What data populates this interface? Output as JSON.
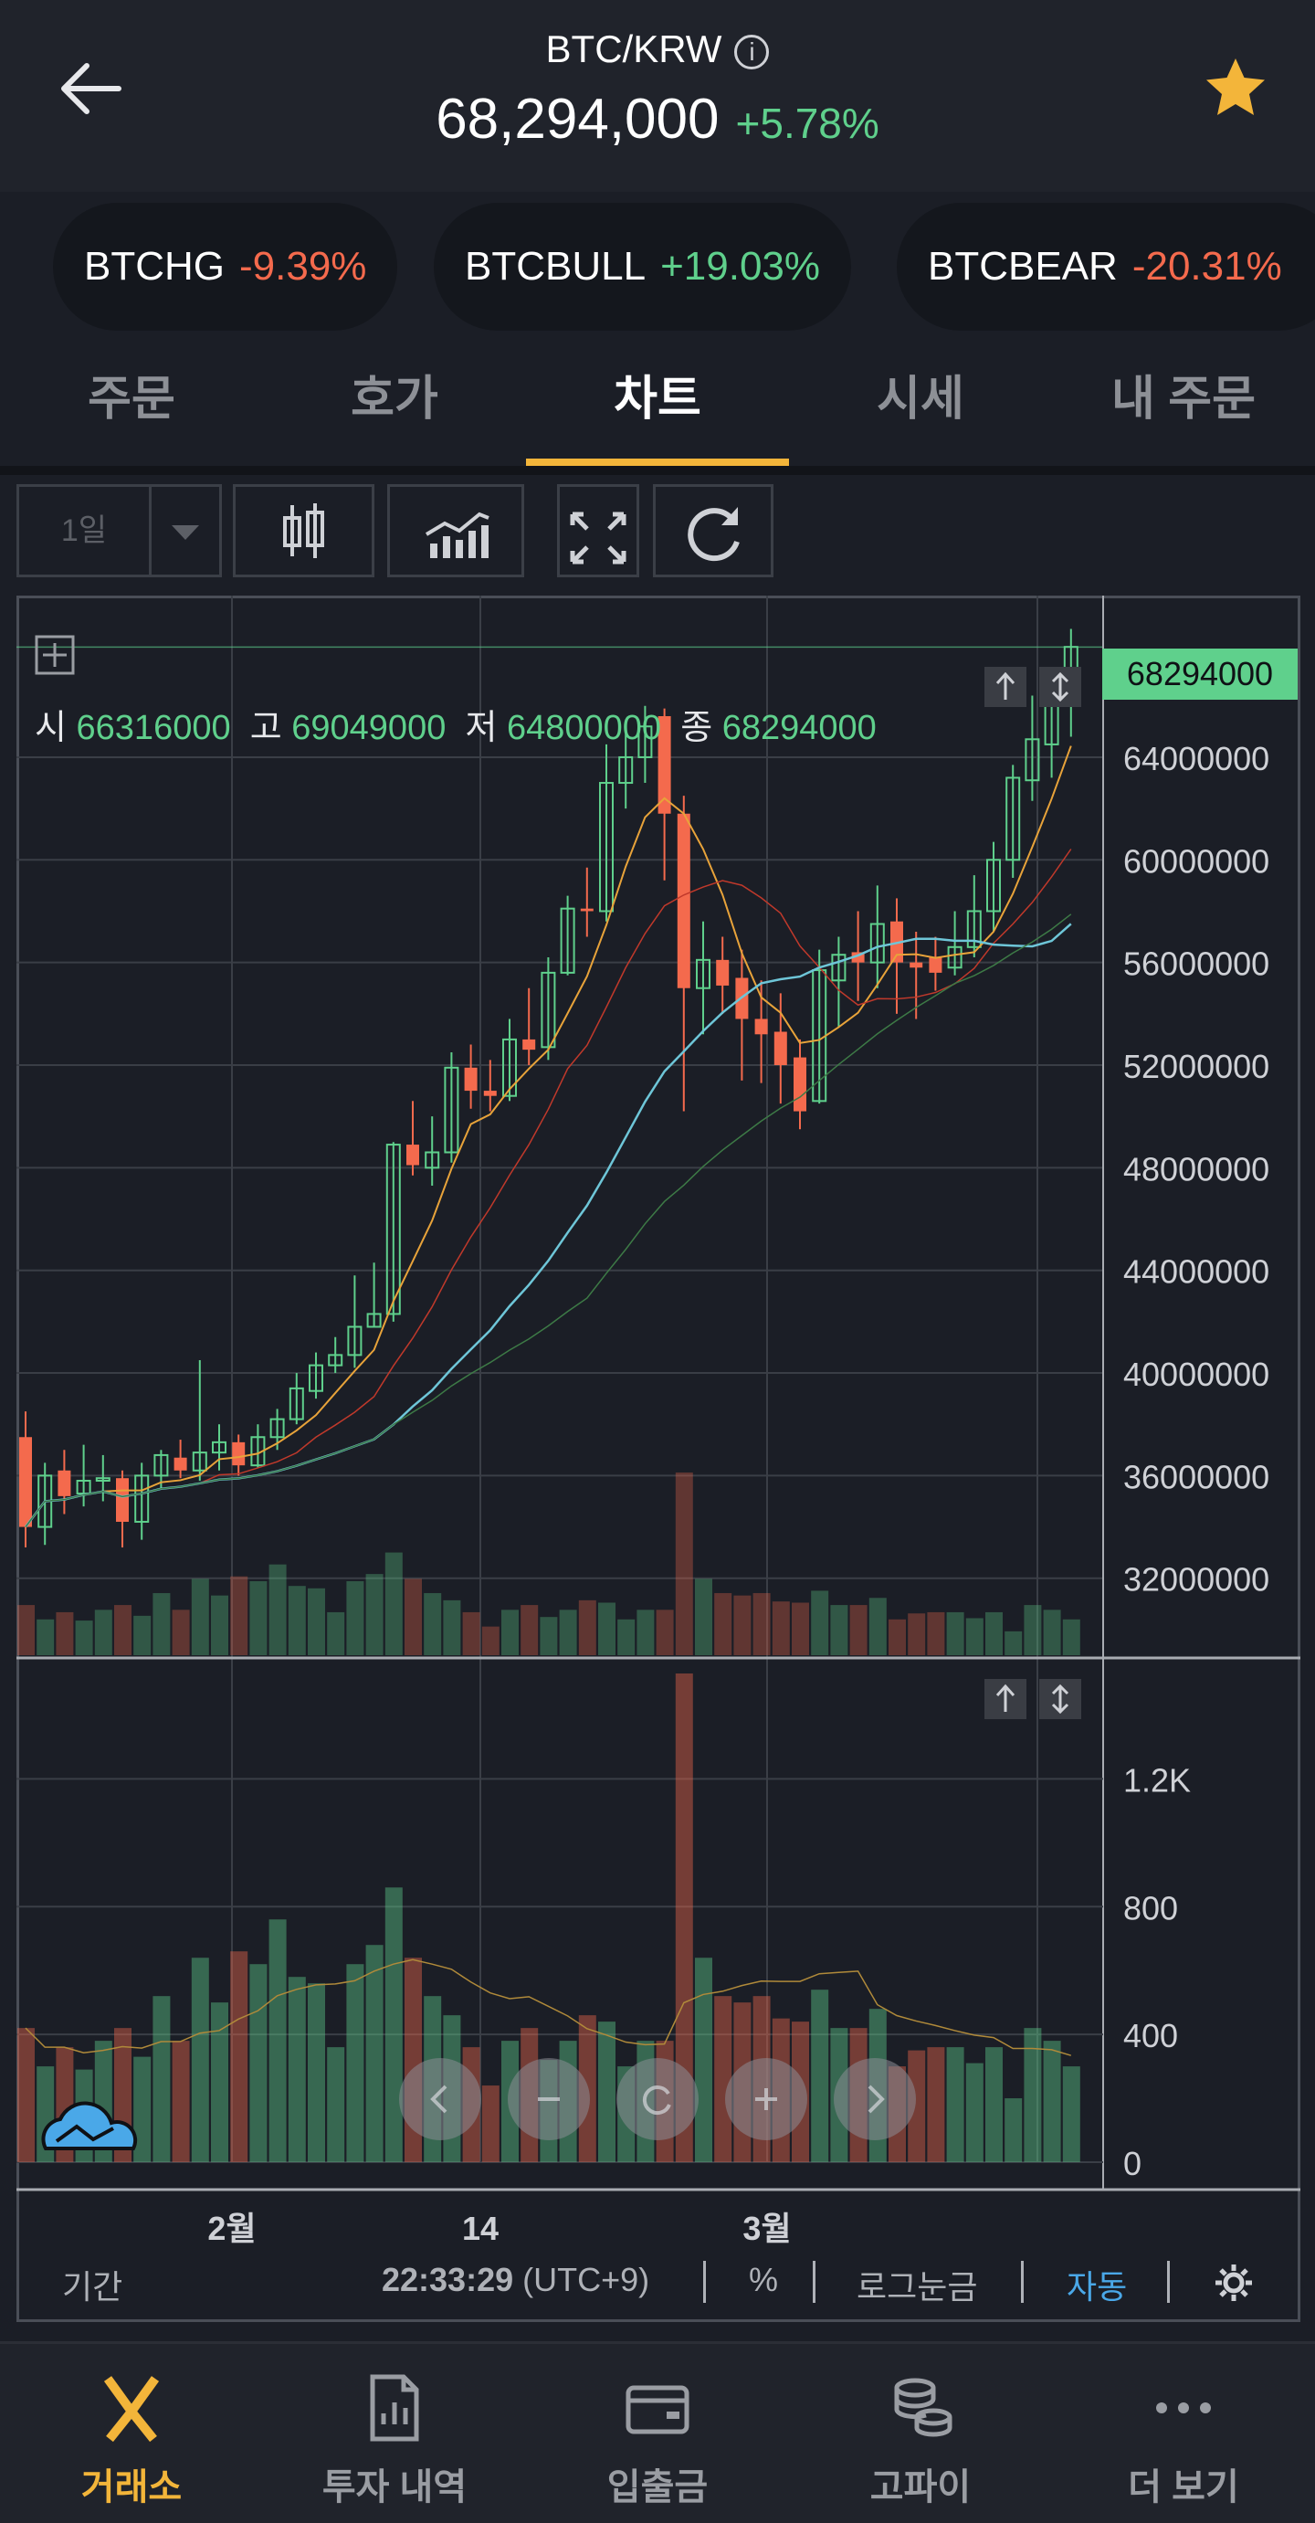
{
  "header": {
    "pair": "BTC/KRW",
    "info_glyph": "i",
    "price": "68,294,000",
    "change": "+5.78%"
  },
  "related": [
    {
      "name": "BTCHG",
      "change": "-9.39%"
    },
    {
      "name": "BTCBULL",
      "change": "+19.03%"
    },
    {
      "name": "BTCBEAR",
      "change": "-20.31%"
    }
  ],
  "tabs": [
    "주문",
    "호가",
    "차트",
    "시세",
    "내 주문"
  ],
  "active_tab": "차트",
  "toolbar": {
    "interval": "1일"
  },
  "ohlc": {
    "open_label": "시",
    "open": "66316000",
    "high_label": "고",
    "high": "69049000",
    "low_label": "저",
    "low": "64800000",
    "close_label": "종",
    "close": "68294000"
  },
  "last_price_tag": "68294000",
  "price_axis": [
    "64000000",
    "60000000",
    "56000000",
    "52000000",
    "48000000",
    "44000000",
    "40000000",
    "36000000",
    "32000000"
  ],
  "volume_axis": [
    "1.2K",
    "800",
    "400",
    "0"
  ],
  "time_axis": [
    "2월",
    "14",
    "3월"
  ],
  "footer": {
    "period": "기간",
    "time": "22:33:29",
    "tz": "(UTC+9)",
    "percent": "%",
    "log": "로그눈금",
    "auto": "자동"
  },
  "colors": {
    "up": "#5fd08c",
    "down": "#f46a4d",
    "accent": "#f3b53a",
    "auto": "#4aa8e8"
  },
  "nav": [
    {
      "label": "거래소",
      "icon": "exchange-x-icon"
    },
    {
      "label": "투자 내역",
      "icon": "report-icon"
    },
    {
      "label": "입출금",
      "icon": "wallet-icon"
    },
    {
      "label": "고파이",
      "icon": "coins-icon"
    },
    {
      "label": "더 보기",
      "icon": "more-icon"
    }
  ],
  "chart_data": {
    "type": "candlestick",
    "interval": "1일",
    "ohlc_approx": [
      [
        37500000,
        34000000,
        38500000,
        33200000
      ],
      [
        34000000,
        36000000,
        36500000,
        33300000
      ],
      [
        36200000,
        35200000,
        37000000,
        34500000
      ],
      [
        35300000,
        35800000,
        37200000,
        34800000
      ],
      [
        35800000,
        35900000,
        36800000,
        35000000
      ],
      [
        35900000,
        34200000,
        36200000,
        33200000
      ],
      [
        34200000,
        36000000,
        36500000,
        33500000
      ],
      [
        36000000,
        36800000,
        37000000,
        35500000
      ],
      [
        36700000,
        36200000,
        37400000,
        35900000
      ],
      [
        36200000,
        36900000,
        40500000,
        35800000
      ],
      [
        36900000,
        37300000,
        38000000,
        36200000
      ],
      [
        37300000,
        36400000,
        37600000,
        36000000
      ],
      [
        36400000,
        37500000,
        38000000,
        36300000
      ],
      [
        37500000,
        38200000,
        38600000,
        37000000
      ],
      [
        38200000,
        39400000,
        40000000,
        38000000
      ],
      [
        39300000,
        40300000,
        40800000,
        39000000
      ],
      [
        40300000,
        40700000,
        41400000,
        40000000
      ],
      [
        40700000,
        41800000,
        43800000,
        40200000
      ],
      [
        41800000,
        42300000,
        44300000,
        41800000
      ],
      [
        42300000,
        48900000,
        49000000,
        42000000
      ],
      [
        48900000,
        48100000,
        50600000,
        47700000
      ],
      [
        48000000,
        48600000,
        50000000,
        47300000
      ],
      [
        48600000,
        51900000,
        52500000,
        48200000
      ],
      [
        51900000,
        51000000,
        52800000,
        50300000
      ],
      [
        51000000,
        50800000,
        52200000,
        50200000
      ],
      [
        50800000,
        53000000,
        53800000,
        50600000
      ],
      [
        53000000,
        52600000,
        55000000,
        52000000
      ],
      [
        52700000,
        55600000,
        56200000,
        52200000
      ],
      [
        55600000,
        58100000,
        58600000,
        55500000
      ],
      [
        58100000,
        58000000,
        59700000,
        57000000
      ],
      [
        58000000,
        63000000,
        64500000,
        57600000
      ],
      [
        63000000,
        64000000,
        65000000,
        62000000
      ],
      [
        64000000,
        65200000,
        66000000,
        63000000
      ],
      [
        65600000,
        61800000,
        65900000,
        59200000
      ],
      [
        61800000,
        55000000,
        62500000,
        50200000
      ],
      [
        55000000,
        56100000,
        57600000,
        53200000
      ],
      [
        56100000,
        55100000,
        57000000,
        54000000
      ],
      [
        55400000,
        53800000,
        56500000,
        51400000
      ],
      [
        53800000,
        53200000,
        55300000,
        51300000
      ],
      [
        53300000,
        52000000,
        54800000,
        50500000
      ],
      [
        52300000,
        50200000,
        53000000,
        49500000
      ],
      [
        50600000,
        55700000,
        56500000,
        50500000
      ],
      [
        55300000,
        56300000,
        57000000,
        53500000
      ],
      [
        56400000,
        56000000,
        58000000,
        54500000
      ],
      [
        56000000,
        57500000,
        59000000,
        55000000
      ],
      [
        57600000,
        56000000,
        58500000,
        54000000
      ],
      [
        56000000,
        55800000,
        57200000,
        53800000
      ],
      [
        56200000,
        55600000,
        57000000,
        54900000
      ],
      [
        55800000,
        56600000,
        58000000,
        55500000
      ],
      [
        56600000,
        58000000,
        59400000,
        56200000
      ],
      [
        58000000,
        60000000,
        60700000,
        57200000
      ],
      [
        60000000,
        63200000,
        63700000,
        59300000
      ],
      [
        63100000,
        64700000,
        66400000,
        62300000
      ],
      [
        64500000,
        66000000,
        67200000,
        63200000
      ],
      [
        66300000,
        68300000,
        69000000,
        64800000
      ]
    ],
    "price_range": [
      29000000,
      70300000
    ],
    "volume_range": [
      0,
      1530
    ],
    "indicators": [
      "MA (orange)",
      "MA (red)",
      "MA (cyan)",
      "MA (green)"
    ]
  }
}
